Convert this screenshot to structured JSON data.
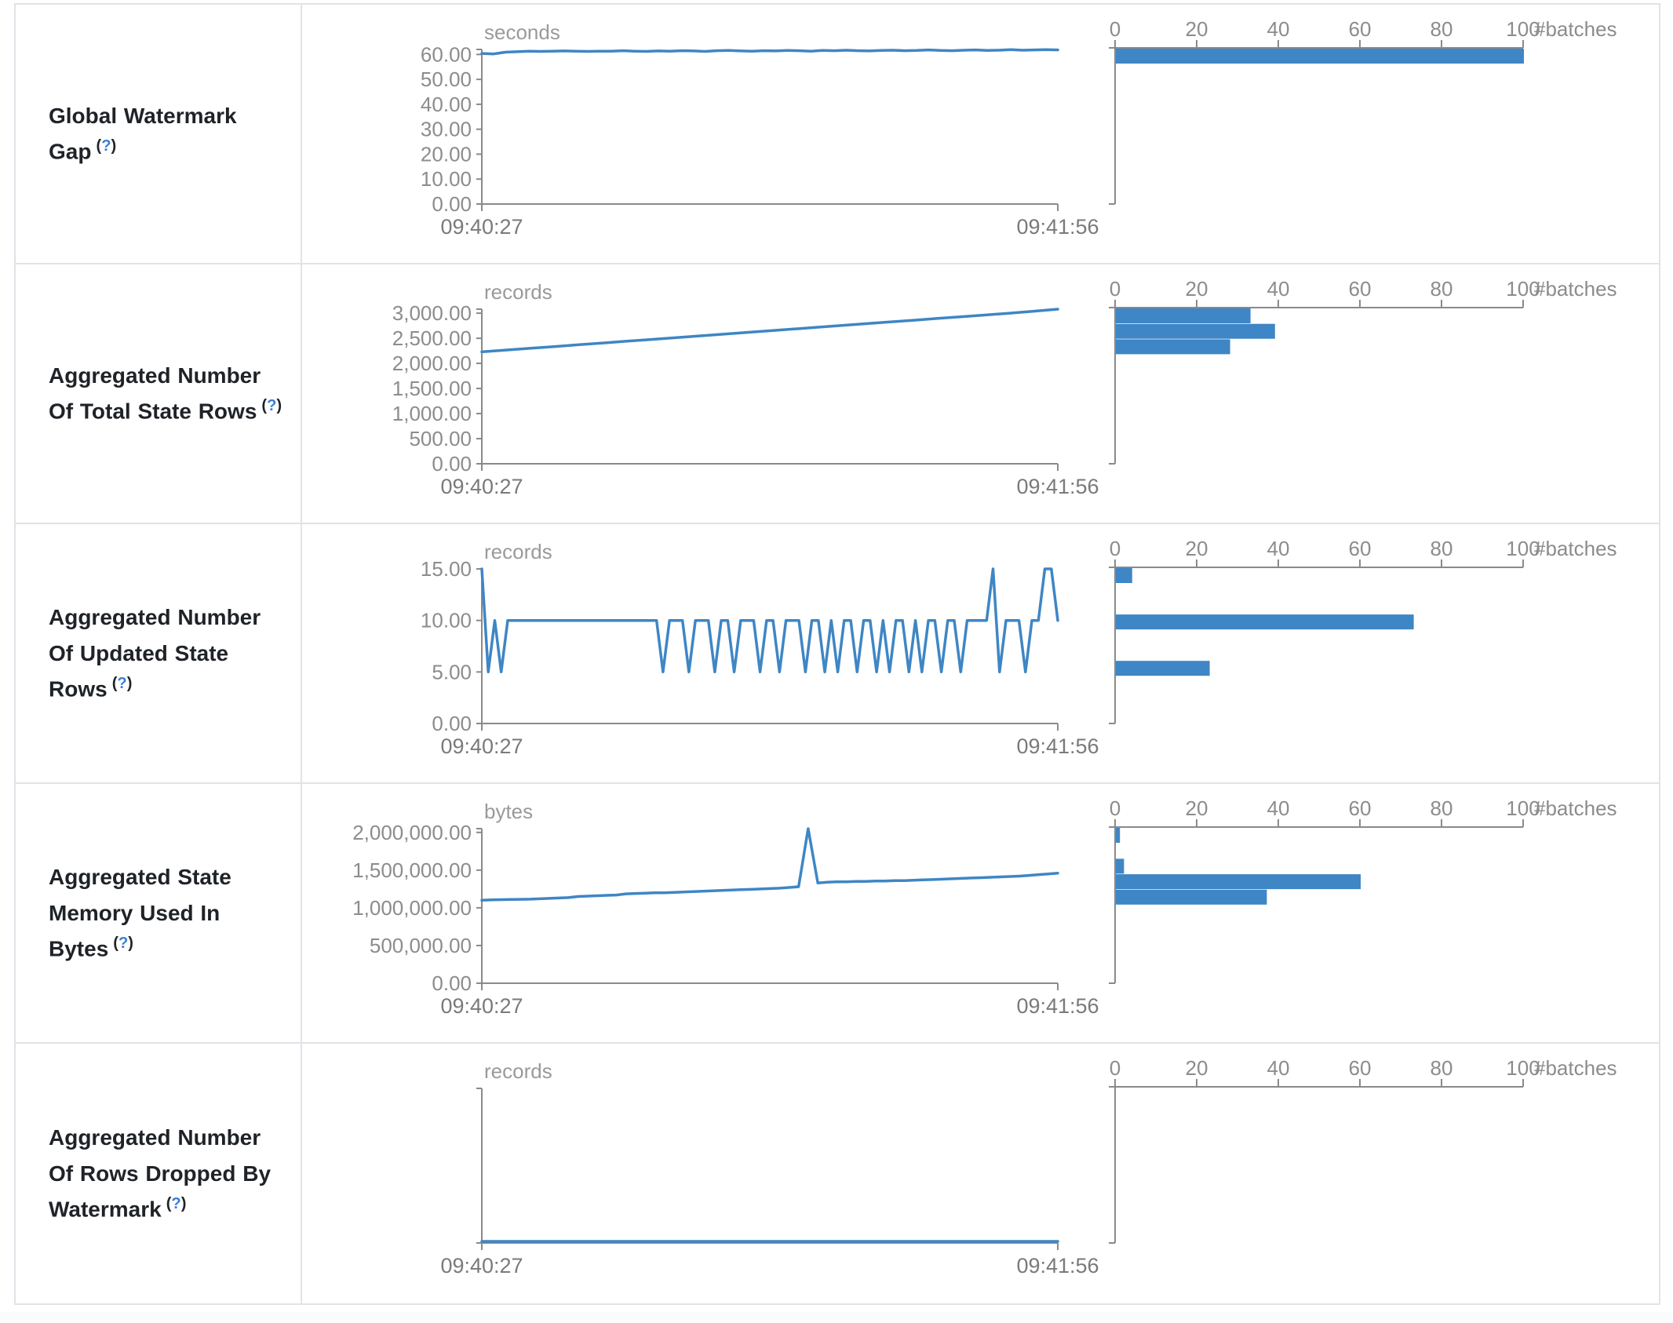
{
  "page": {
    "background": "#ffffff",
    "border_color": "#e0e3e7",
    "accent_blue": "#3e86c5",
    "axis_color": "#8a8a8a",
    "tick_text_color": "#8c8c8c",
    "time_text_color": "#7a7a7a",
    "label_color": "#1f2328",
    "help_link_color": "#3a7fd5",
    "help_q": "?",
    "help_open_paren": "(",
    "help_close_paren": ")"
  },
  "chart_data": {
    "type": "line",
    "x_axis": {
      "start_label": "09:40:27",
      "end_label": "09:41:56"
    },
    "hist_axis": {
      "ticks": [
        "0",
        "20",
        "40",
        "60",
        "80",
        "100"
      ],
      "tick_values": [
        0,
        20,
        40,
        60,
        80,
        100
      ],
      "label": "#batches",
      "max": 100
    },
    "rows": [
      {
        "label": "Global Watermark Gap",
        "unit": "seconds",
        "scale_max": 62,
        "y_ticks": [
          {
            "v": 60,
            "label": "60.00"
          },
          {
            "v": 50,
            "label": "50.00"
          },
          {
            "v": 40,
            "label": "40.00"
          },
          {
            "v": 30,
            "label": "30.00"
          },
          {
            "v": 20,
            "label": "20.00"
          },
          {
            "v": 10,
            "label": "10.00"
          },
          {
            "v": 0,
            "label": "0.00"
          }
        ],
        "series": [
          60.4,
          60.2,
          60.9,
          61.1,
          61.3,
          61.2,
          61.3,
          61.4,
          61.3,
          61.2,
          61.3,
          61.3,
          61.5,
          61.3,
          61.2,
          61.4,
          61.3,
          61.5,
          61.4,
          61.2,
          61.5,
          61.6,
          61.4,
          61.3,
          61.5,
          61.4,
          61.6,
          61.5,
          61.3,
          61.6,
          61.5,
          61.7,
          61.5,
          61.4,
          61.6,
          61.7,
          61.5,
          61.6,
          61.8,
          61.6,
          61.5,
          61.7,
          61.8,
          61.6,
          61.7,
          61.9,
          61.7,
          61.8,
          61.9,
          61.8
        ],
        "histogram": [
          {
            "bin": 0,
            "count": 100
          }
        ]
      },
      {
        "label": "Aggregated Number Of Total State Rows",
        "unit": "records",
        "scale_max": 3080,
        "y_ticks": [
          {
            "v": 3000,
            "label": "3,000.00"
          },
          {
            "v": 2500,
            "label": "2,500.00"
          },
          {
            "v": 2000,
            "label": "2,000.00"
          },
          {
            "v": 1500,
            "label": "1,500.00"
          },
          {
            "v": 1000,
            "label": "1,000.00"
          },
          {
            "v": 500,
            "label": "500.00"
          },
          {
            "v": 0,
            "label": "0.00"
          }
        ],
        "series": [
          2230,
          2265,
          2300,
          2335,
          2370,
          2405,
          2440,
          2475,
          2510,
          2545,
          2580,
          2615,
          2650,
          2685,
          2720,
          2755,
          2790,
          2825,
          2860,
          2895,
          2930,
          2965,
          3000,
          3040,
          3080
        ],
        "histogram": [
          {
            "bin": 0,
            "count": 33
          },
          {
            "bin": 1,
            "count": 39
          },
          {
            "bin": 2,
            "count": 28
          }
        ]
      },
      {
        "label": "Aggregated Number Of Updated State Rows",
        "unit": "records",
        "scale_max": 15,
        "y_ticks": [
          {
            "v": 15,
            "label": "15.00"
          },
          {
            "v": 10,
            "label": "10.00"
          },
          {
            "v": 5,
            "label": "5.00"
          },
          {
            "v": 0,
            "label": "0.00"
          }
        ],
        "series": [
          15,
          5,
          10,
          5,
          10,
          10,
          10,
          10,
          10,
          10,
          10,
          10,
          10,
          10,
          10,
          10,
          10,
          10,
          10,
          10,
          10,
          10,
          10,
          10,
          10,
          10,
          10,
          10,
          5,
          10,
          10,
          10,
          5,
          10,
          10,
          10,
          5,
          10,
          10,
          5,
          10,
          10,
          10,
          5,
          10,
          10,
          5,
          10,
          10,
          10,
          5,
          10,
          10,
          5,
          10,
          5,
          10,
          10,
          5,
          10,
          10,
          5,
          10,
          5,
          10,
          10,
          5,
          10,
          5,
          10,
          10,
          5,
          10,
          10,
          5,
          10,
          10,
          10,
          10,
          15,
          5,
          10,
          10,
          10,
          5,
          10,
          10,
          15,
          15,
          10
        ],
        "histogram": [
          {
            "bin": 0,
            "count": 4
          },
          {
            "bin": 3,
            "count": 73
          },
          {
            "bin": 6,
            "count": 23
          }
        ]
      },
      {
        "label": "Aggregated State Memory Used In Bytes",
        "unit": "bytes",
        "scale_max": 2050000,
        "y_ticks": [
          {
            "v": 2000000,
            "label": "2,000,000.00"
          },
          {
            "v": 1500000,
            "label": "1,500,000.00"
          },
          {
            "v": 1000000,
            "label": "1,000,000.00"
          },
          {
            "v": 500000,
            "label": "500,000.00"
          },
          {
            "v": 0,
            "label": "0.00"
          }
        ],
        "series": [
          1100000,
          1105000,
          1108000,
          1110000,
          1112000,
          1115000,
          1120000,
          1125000,
          1130000,
          1135000,
          1150000,
          1155000,
          1160000,
          1165000,
          1170000,
          1185000,
          1190000,
          1195000,
          1200000,
          1200000,
          1205000,
          1210000,
          1215000,
          1220000,
          1225000,
          1230000,
          1235000,
          1240000,
          1245000,
          1250000,
          1255000,
          1260000,
          1270000,
          1280000,
          2050000,
          1330000,
          1340000,
          1345000,
          1345000,
          1350000,
          1350000,
          1355000,
          1355000,
          1360000,
          1360000,
          1365000,
          1370000,
          1375000,
          1380000,
          1385000,
          1390000,
          1395000,
          1400000,
          1405000,
          1410000,
          1415000,
          1420000,
          1430000,
          1440000,
          1450000,
          1460000
        ],
        "histogram": [
          {
            "bin": 0,
            "count": 1
          },
          {
            "bin": 2,
            "count": 2
          },
          {
            "bin": 3,
            "count": 60
          },
          {
            "bin": 4,
            "count": 37
          }
        ]
      },
      {
        "label": "Aggregated Number Of Rows Dropped By Watermark",
        "unit": "records",
        "scale_max": 0,
        "y_ticks": [],
        "series": [
          0,
          0
        ],
        "histogram": []
      }
    ]
  }
}
